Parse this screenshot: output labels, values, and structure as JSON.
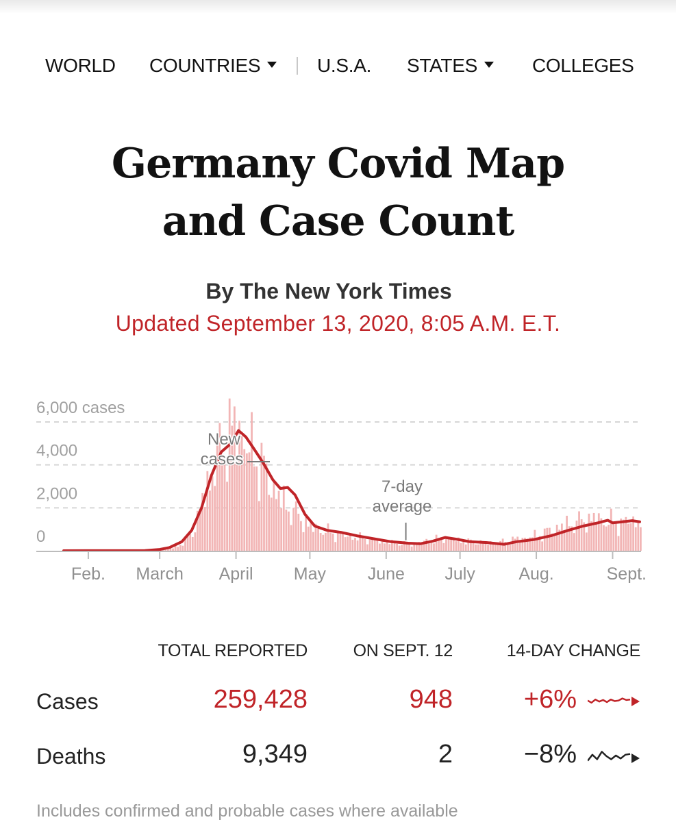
{
  "nav": {
    "items": [
      {
        "label": "WORLD",
        "dropdown": false
      },
      {
        "label": "COUNTRIES",
        "dropdown": true
      },
      {
        "label": "U.S.A.",
        "dropdown": false
      },
      {
        "label": "STATES",
        "dropdown": true
      },
      {
        "label": "COLLEGES",
        "dropdown": false
      }
    ]
  },
  "header": {
    "title_line1": "Germany Covid Map",
    "title_line2": "and Case Count",
    "byline": "By The New York Times",
    "updated": "Updated September 13, 2020, 8:05 A.M. E.T."
  },
  "colors": {
    "accent_red": "#c02428",
    "bar_pink": "#f2b5b5",
    "grid": "#d6d6d6",
    "axis_text": "#909090"
  },
  "chart_data": {
    "type": "bar",
    "title": "",
    "ylabel": "cases",
    "ylim": [
      0,
      6000
    ],
    "yticks": [
      {
        "value": 6000,
        "label": "6,000 cases"
      },
      {
        "value": 4000,
        "label": "4,000"
      },
      {
        "value": 2000,
        "label": "2,000"
      },
      {
        "value": 0,
        "label": "0"
      }
    ],
    "xticks": [
      {
        "date": "2020-02-01",
        "label": "Feb."
      },
      {
        "date": "2020-03-01",
        "label": "March"
      },
      {
        "date": "2020-04-01",
        "label": "April"
      },
      {
        "date": "2020-05-01",
        "label": "May"
      },
      {
        "date": "2020-06-01",
        "label": "June"
      },
      {
        "date": "2020-07-01",
        "label": "July"
      },
      {
        "date": "2020-08-01",
        "label": "Aug."
      },
      {
        "date": "2020-09-01",
        "label": "Sept."
      }
    ],
    "x_range": [
      "2020-01-22",
      "2020-09-12"
    ],
    "grid": true,
    "annotations": [
      {
        "text_line1": "New",
        "text_line2": "cases",
        "date": "2020-04-10",
        "value": 4100
      },
      {
        "text_line1": "7-day",
        "text_line2": "average",
        "date": "2020-06-09",
        "value": 300
      }
    ],
    "series": [
      {
        "name": "New cases",
        "kind": "bar",
        "keypoints": [
          [
            "2020-01-22",
            0
          ],
          [
            "2020-02-24",
            10
          ],
          [
            "2020-03-01",
            40
          ],
          [
            "2020-03-06",
            120
          ],
          [
            "2020-03-11",
            400
          ],
          [
            "2020-03-15",
            1100
          ],
          [
            "2020-03-19",
            2700
          ],
          [
            "2020-03-23",
            3900
          ],
          [
            "2020-03-28",
            5300
          ],
          [
            "2020-04-02",
            5700
          ],
          [
            "2020-04-05",
            4800
          ],
          [
            "2020-04-10",
            4200
          ],
          [
            "2020-04-15",
            3000
          ],
          [
            "2020-04-20",
            2200
          ],
          [
            "2020-04-25",
            1700
          ],
          [
            "2020-05-01",
            1100
          ],
          [
            "2020-05-10",
            800
          ],
          [
            "2020-05-20",
            600
          ],
          [
            "2020-06-01",
            400
          ],
          [
            "2020-06-10",
            300
          ],
          [
            "2020-06-20",
            500
          ],
          [
            "2020-06-25",
            600
          ],
          [
            "2020-07-01",
            450
          ],
          [
            "2020-07-15",
            350
          ],
          [
            "2020-07-22",
            500
          ],
          [
            "2020-08-01",
            700
          ],
          [
            "2020-08-10",
            1100
          ],
          [
            "2020-08-20",
            1400
          ],
          [
            "2020-08-25",
            1500
          ],
          [
            "2020-09-01",
            1300
          ],
          [
            "2020-09-12",
            1400
          ]
        ]
      },
      {
        "name": "7-day average",
        "kind": "line",
        "points": [
          [
            "2020-01-22",
            0
          ],
          [
            "2020-02-24",
            10
          ],
          [
            "2020-03-01",
            60
          ],
          [
            "2020-03-05",
            150
          ],
          [
            "2020-03-10",
            420
          ],
          [
            "2020-03-14",
            950
          ],
          [
            "2020-03-18",
            2000
          ],
          [
            "2020-03-22",
            3500
          ],
          [
            "2020-03-26",
            4600
          ],
          [
            "2020-03-30",
            5000
          ],
          [
            "2020-04-02",
            5600
          ],
          [
            "2020-04-05",
            5300
          ],
          [
            "2020-04-08",
            4800
          ],
          [
            "2020-04-12",
            4100
          ],
          [
            "2020-04-16",
            3300
          ],
          [
            "2020-04-19",
            2900
          ],
          [
            "2020-04-22",
            2950
          ],
          [
            "2020-04-25",
            2600
          ],
          [
            "2020-04-29",
            1700
          ],
          [
            "2020-05-03",
            1150
          ],
          [
            "2020-05-08",
            950
          ],
          [
            "2020-05-14",
            850
          ],
          [
            "2020-05-20",
            700
          ],
          [
            "2020-05-27",
            560
          ],
          [
            "2020-06-03",
            420
          ],
          [
            "2020-06-10",
            350
          ],
          [
            "2020-06-15",
            330
          ],
          [
            "2020-06-20",
            450
          ],
          [
            "2020-06-25",
            620
          ],
          [
            "2020-06-30",
            530
          ],
          [
            "2020-07-05",
            420
          ],
          [
            "2020-07-12",
            380
          ],
          [
            "2020-07-19",
            300
          ],
          [
            "2020-07-24",
            420
          ],
          [
            "2020-07-31",
            520
          ],
          [
            "2020-08-07",
            700
          ],
          [
            "2020-08-14",
            950
          ],
          [
            "2020-08-20",
            1150
          ],
          [
            "2020-08-26",
            1300
          ],
          [
            "2020-08-30",
            1420
          ],
          [
            "2020-09-01",
            1300
          ],
          [
            "2020-09-05",
            1350
          ],
          [
            "2020-09-09",
            1400
          ],
          [
            "2020-09-12",
            1350
          ]
        ]
      }
    ]
  },
  "stats": {
    "headers": [
      "TOTAL REPORTED",
      "ON SEPT. 12",
      "14-DAY CHANGE"
    ],
    "rows": [
      {
        "label": "Cases",
        "total": "259,428",
        "on_day": "948",
        "change": "+6%",
        "trend": "up",
        "color": "#c02428",
        "sparkline": [
          0.5,
          0.3,
          0.6,
          0.4,
          0.55,
          0.35,
          0.6,
          0.45,
          0.5,
          0.7,
          0.55,
          0.6
        ]
      },
      {
        "label": "Deaths",
        "total": "9,349",
        "on_day": "2",
        "change": "−8%",
        "trend": "down",
        "color": "#222222",
        "sparkline": [
          0.2,
          0.6,
          0.3,
          0.8,
          0.5,
          0.3,
          0.55,
          0.35,
          0.6,
          0.65
        ]
      }
    ]
  },
  "footnote": "Includes confirmed and probable cases where available"
}
